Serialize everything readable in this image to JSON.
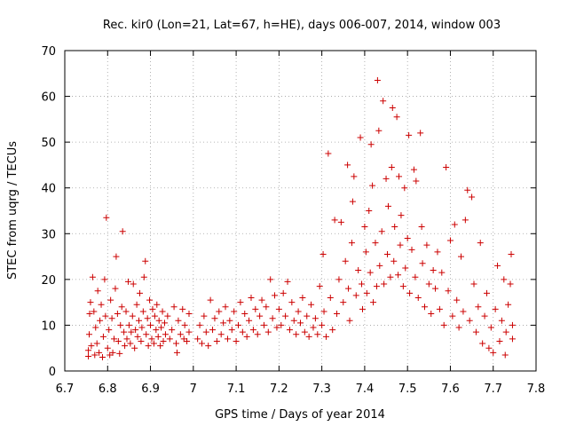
{
  "chart_data": {
    "type": "scatter",
    "title": "Rec. kir0 (Lon=21, Lat=67, h=HE), days 006-007, 2014, window 003",
    "xlabel": "GPS time / Days of year 2014",
    "ylabel": "STEC from uqrg / TECUs",
    "xlim": [
      6.7,
      7.8
    ],
    "ylim": [
      0,
      70
    ],
    "xticks": [
      "6.7",
      "6.8",
      "6.9",
      "7",
      "7.1",
      "7.2",
      "7.3",
      "7.4",
      "7.5",
      "7.6",
      "7.7",
      "7.8"
    ],
    "yticks": [
      "0",
      "10",
      "20",
      "30",
      "40",
      "50",
      "60",
      "70"
    ],
    "grid": true,
    "marker": "+",
    "color": "#cc0000",
    "series": [
      {
        "points": [
          [
            6.755,
            3.2
          ],
          [
            6.755,
            4.5
          ],
          [
            6.757,
            8.0
          ],
          [
            6.758,
            12.5
          ],
          [
            6.76,
            15.0
          ],
          [
            6.762,
            5.5
          ],
          [
            6.765,
            20.5
          ],
          [
            6.768,
            13.0
          ],
          [
            6.77,
            3.5
          ],
          [
            6.772,
            9.5
          ],
          [
            6.775,
            6.0
          ],
          [
            6.777,
            17.5
          ],
          [
            6.78,
            4.0
          ],
          [
            6.782,
            11.0
          ],
          [
            6.785,
            14.5
          ],
          [
            6.788,
            3.0
          ],
          [
            6.79,
            7.5
          ],
          [
            6.793,
            20.0
          ],
          [
            6.795,
            12.0
          ],
          [
            6.797,
            33.5
          ],
          [
            6.8,
            5.0
          ],
          [
            6.803,
            9.0
          ],
          [
            6.805,
            3.5
          ],
          [
            6.807,
            15.5
          ],
          [
            6.81,
            11.5
          ],
          [
            6.812,
            4.0
          ],
          [
            6.815,
            7.0
          ],
          [
            6.818,
            18.0
          ],
          [
            6.82,
            25.0
          ],
          [
            6.823,
            12.5
          ],
          [
            6.825,
            6.5
          ],
          [
            6.828,
            3.8
          ],
          [
            6.83,
            10.0
          ],
          [
            6.833,
            14.0
          ],
          [
            6.835,
            30.5
          ],
          [
            6.838,
            8.5
          ],
          [
            6.84,
            5.5
          ],
          [
            6.843,
            13.0
          ],
          [
            6.845,
            7.0
          ],
          [
            6.848,
            19.5
          ],
          [
            6.85,
            10.0
          ],
          [
            6.853,
            6.0
          ],
          [
            6.855,
            8.5
          ],
          [
            6.858,
            12.0
          ],
          [
            6.86,
            19.0
          ],
          [
            6.863,
            5.0
          ],
          [
            6.865,
            9.0
          ],
          [
            6.868,
            14.5
          ],
          [
            6.87,
            7.5
          ],
          [
            6.873,
            11.0
          ],
          [
            6.875,
            17.0
          ],
          [
            6.878,
            6.5
          ],
          [
            6.88,
            9.5
          ],
          [
            6.883,
            13.0
          ],
          [
            6.885,
            20.5
          ],
          [
            6.888,
            24.0
          ],
          [
            6.89,
            8.0
          ],
          [
            6.893,
            11.5
          ],
          [
            6.895,
            5.5
          ],
          [
            6.898,
            15.5
          ],
          [
            6.9,
            10.0
          ],
          [
            6.903,
            7.0
          ],
          [
            6.905,
            13.5
          ],
          [
            6.908,
            6.0
          ],
          [
            6.91,
            12.0
          ],
          [
            6.913,
            9.0
          ],
          [
            6.915,
            14.5
          ],
          [
            6.918,
            7.5
          ],
          [
            6.92,
            11.0
          ],
          [
            6.923,
            5.5
          ],
          [
            6.925,
            9.5
          ],
          [
            6.928,
            13.0
          ],
          [
            6.93,
            6.5
          ],
          [
            6.933,
            10.5
          ],
          [
            6.935,
            8.0
          ],
          [
            6.94,
            12.0
          ],
          [
            6.945,
            7.0
          ],
          [
            6.95,
            9.0
          ],
          [
            6.955,
            14.0
          ],
          [
            6.96,
            6.0
          ],
          [
            6.962,
            4.0
          ],
          [
            6.965,
            11.0
          ],
          [
            6.97,
            8.0
          ],
          [
            6.975,
            13.5
          ],
          [
            6.978,
            7.0
          ],
          [
            6.98,
            10.0
          ],
          [
            6.985,
            6.5
          ],
          [
            6.99,
            12.5
          ],
          [
            6.99,
            8.5
          ],
          [
            7.01,
            7.0
          ],
          [
            7.015,
            10.0
          ],
          [
            7.02,
            6.0
          ],
          [
            7.025,
            12.0
          ],
          [
            7.03,
            8.5
          ],
          [
            7.035,
            5.5
          ],
          [
            7.04,
            15.5
          ],
          [
            7.045,
            9.0
          ],
          [
            7.05,
            11.5
          ],
          [
            7.055,
            6.5
          ],
          [
            7.06,
            13.0
          ],
          [
            7.065,
            8.0
          ],
          [
            7.07,
            10.5
          ],
          [
            7.075,
            14.0
          ],
          [
            7.08,
            7.0
          ],
          [
            7.085,
            11.0
          ],
          [
            7.09,
            9.0
          ],
          [
            7.095,
            13.0
          ],
          [
            7.1,
            6.5
          ],
          [
            7.105,
            10.0
          ],
          [
            7.11,
            15.0
          ],
          [
            7.115,
            8.5
          ],
          [
            7.12,
            12.5
          ],
          [
            7.125,
            7.5
          ],
          [
            7.13,
            11.0
          ],
          [
            7.135,
            16.0
          ],
          [
            7.14,
            9.0
          ],
          [
            7.145,
            13.5
          ],
          [
            7.15,
            8.0
          ],
          [
            7.155,
            12.0
          ],
          [
            7.16,
            15.5
          ],
          [
            7.165,
            10.0
          ],
          [
            7.17,
            14.0
          ],
          [
            7.175,
            8.5
          ],
          [
            7.18,
            20.0
          ],
          [
            7.185,
            11.5
          ],
          [
            7.19,
            16.5
          ],
          [
            7.195,
            9.5
          ],
          [
            7.2,
            13.5
          ],
          [
            7.205,
            10.0
          ],
          [
            7.21,
            17.0
          ],
          [
            7.215,
            12.0
          ],
          [
            7.22,
            19.5
          ],
          [
            7.225,
            9.0
          ],
          [
            7.23,
            15.0
          ],
          [
            7.235,
            11.0
          ],
          [
            7.24,
            8.0
          ],
          [
            7.245,
            13.0
          ],
          [
            7.25,
            10.5
          ],
          [
            7.255,
            16.0
          ],
          [
            7.26,
            8.5
          ],
          [
            7.265,
            12.0
          ],
          [
            7.27,
            7.5
          ],
          [
            7.275,
            14.5
          ],
          [
            7.28,
            9.5
          ],
          [
            7.285,
            11.5
          ],
          [
            7.29,
            8.0
          ],
          [
            7.295,
            18.5
          ],
          [
            7.3,
            10.0
          ],
          [
            7.303,
            25.5
          ],
          [
            7.305,
            13.0
          ],
          [
            7.31,
            7.5
          ],
          [
            7.315,
            47.5
          ],
          [
            7.32,
            16.0
          ],
          [
            7.325,
            9.0
          ],
          [
            7.33,
            33.0
          ],
          [
            7.335,
            12.5
          ],
          [
            7.34,
            20.0
          ],
          [
            7.345,
            32.5
          ],
          [
            7.35,
            15.0
          ],
          [
            7.355,
            24.0
          ],
          [
            7.36,
            45.0
          ],
          [
            7.362,
            18.0
          ],
          [
            7.365,
            11.0
          ],
          [
            7.37,
            28.0
          ],
          [
            7.372,
            37.0
          ],
          [
            7.375,
            42.5
          ],
          [
            7.38,
            16.5
          ],
          [
            7.385,
            22.0
          ],
          [
            7.39,
            51.0
          ],
          [
            7.393,
            19.0
          ],
          [
            7.395,
            13.5
          ],
          [
            7.4,
            31.5
          ],
          [
            7.403,
            26.0
          ],
          [
            7.405,
            17.0
          ],
          [
            7.41,
            35.0
          ],
          [
            7.413,
            21.5
          ],
          [
            7.415,
            49.5
          ],
          [
            7.418,
            40.5
          ],
          [
            7.42,
            15.0
          ],
          [
            7.425,
            28.0
          ],
          [
            7.428,
            18.5
          ],
          [
            7.43,
            63.5
          ],
          [
            7.433,
            52.5
          ],
          [
            7.435,
            23.0
          ],
          [
            7.44,
            30.5
          ],
          [
            7.443,
            59.0
          ],
          [
            7.445,
            19.0
          ],
          [
            7.45,
            42.0
          ],
          [
            7.453,
            25.5
          ],
          [
            7.455,
            36.0
          ],
          [
            7.46,
            20.5
          ],
          [
            7.463,
            44.5
          ],
          [
            7.465,
            57.5
          ],
          [
            7.468,
            24.0
          ],
          [
            7.47,
            31.5
          ],
          [
            7.475,
            55.5
          ],
          [
            7.478,
            21.0
          ],
          [
            7.48,
            42.5
          ],
          [
            7.483,
            27.5
          ],
          [
            7.485,
            34.0
          ],
          [
            7.49,
            18.5
          ],
          [
            7.493,
            40.0
          ],
          [
            7.495,
            22.5
          ],
          [
            7.5,
            29.0
          ],
          [
            7.503,
            51.5
          ],
          [
            7.505,
            17.0
          ],
          [
            7.51,
            26.5
          ],
          [
            7.515,
            44.0
          ],
          [
            7.518,
            20.5
          ],
          [
            7.52,
            41.5
          ],
          [
            7.525,
            16.0
          ],
          [
            7.53,
            52.0
          ],
          [
            7.533,
            31.5
          ],
          [
            7.535,
            23.5
          ],
          [
            7.54,
            14.0
          ],
          [
            7.545,
            27.5
          ],
          [
            7.55,
            19.0
          ],
          [
            7.555,
            12.5
          ],
          [
            7.56,
            22.0
          ],
          [
            7.565,
            18.0
          ],
          [
            7.57,
            26.0
          ],
          [
            7.575,
            13.5
          ],
          [
            7.58,
            21.5
          ],
          [
            7.585,
            10.0
          ],
          [
            7.59,
            44.5
          ],
          [
            7.595,
            17.5
          ],
          [
            7.6,
            28.5
          ],
          [
            7.605,
            12.0
          ],
          [
            7.61,
            32.0
          ],
          [
            7.615,
            15.5
          ],
          [
            7.62,
            9.5
          ],
          [
            7.625,
            25.0
          ],
          [
            7.63,
            13.0
          ],
          [
            7.635,
            33.0
          ],
          [
            7.64,
            39.5
          ],
          [
            7.645,
            11.0
          ],
          [
            7.65,
            38.0
          ],
          [
            7.655,
            19.0
          ],
          [
            7.66,
            8.5
          ],
          [
            7.665,
            14.0
          ],
          [
            7.67,
            28.0
          ],
          [
            7.675,
            6.0
          ],
          [
            7.68,
            12.0
          ],
          [
            7.685,
            17.0
          ],
          [
            7.69,
            5.0
          ],
          [
            7.695,
            9.5
          ],
          [
            7.7,
            4.0
          ],
          [
            7.705,
            13.5
          ],
          [
            7.71,
            23.0
          ],
          [
            7.715,
            6.5
          ],
          [
            7.72,
            11.0
          ],
          [
            7.725,
            20.0
          ],
          [
            7.728,
            3.5
          ],
          [
            7.73,
            8.5
          ],
          [
            7.735,
            14.5
          ],
          [
            7.74,
            19.0
          ],
          [
            7.742,
            25.5
          ],
          [
            7.745,
            7.0
          ],
          [
            7.745,
            10.0
          ]
        ]
      }
    ]
  }
}
